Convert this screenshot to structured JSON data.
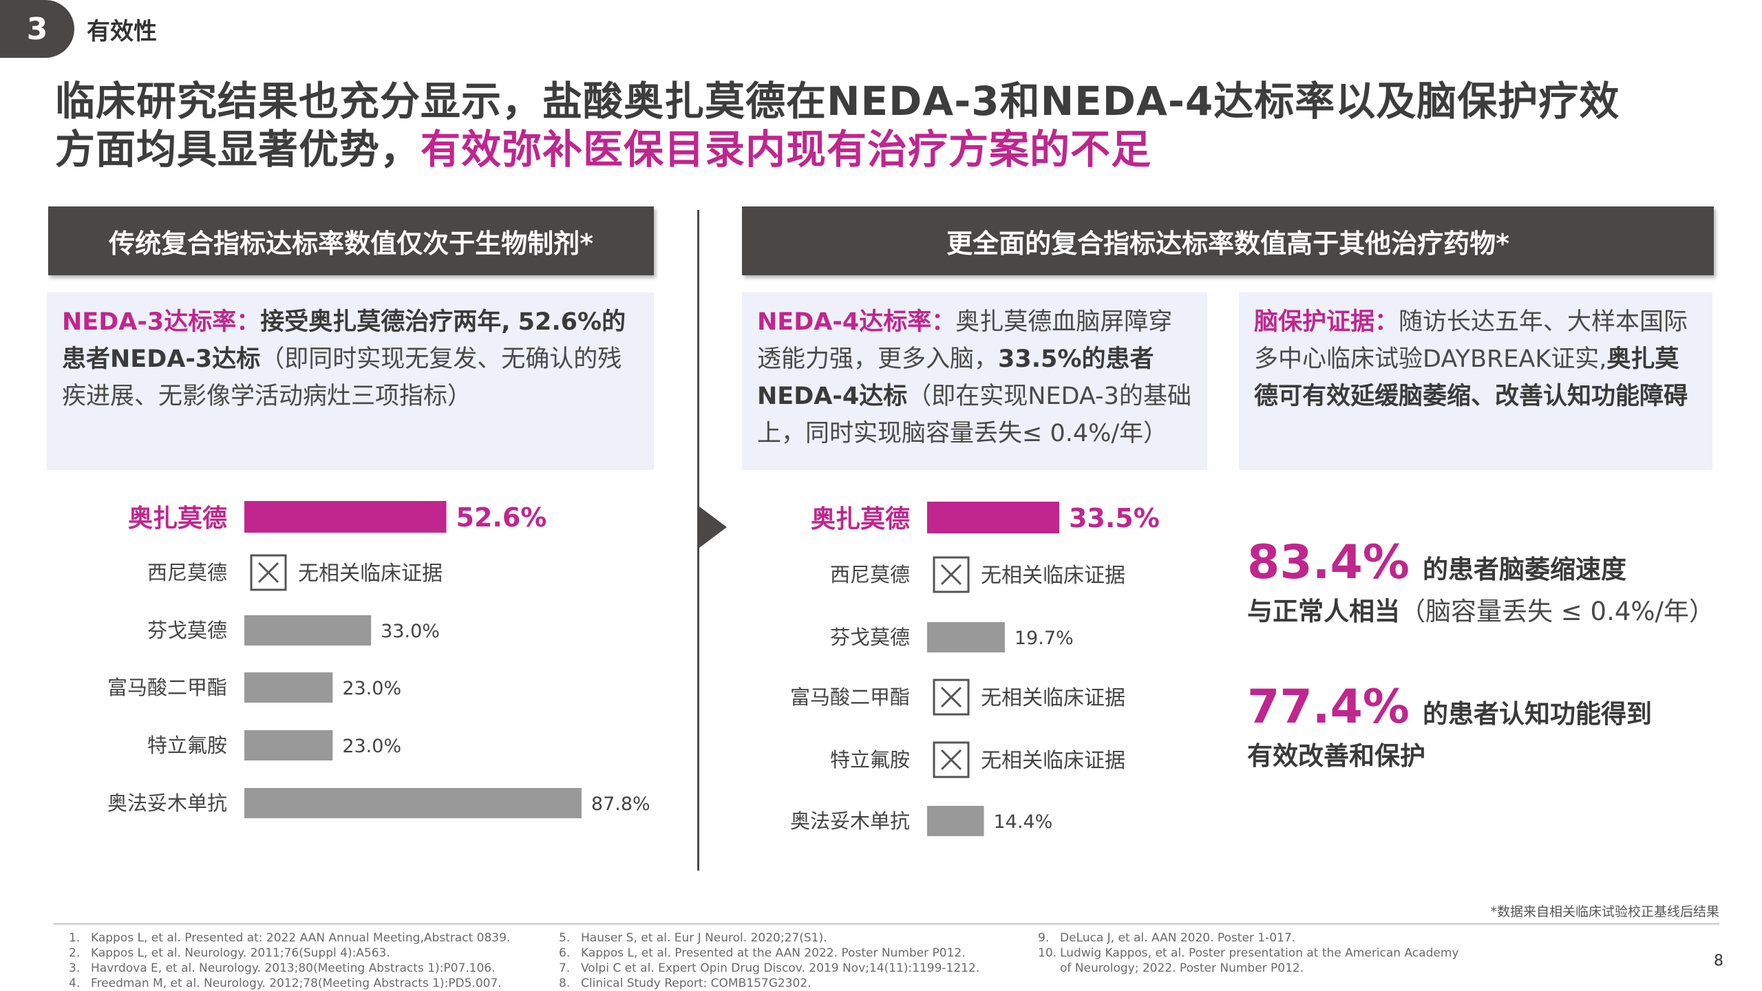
{
  "section": {
    "number": "3",
    "label": "有效性"
  },
  "headline": {
    "line1": "临床研究结果也充分显示，盐酸奥扎莫德在NEDA-3和NEDA-4达标率以及脑保护疗效",
    "line2_plain": "方面均具显著优势，",
    "line2_highlight": "有效弥补医保目录内现有治疗方案的不足"
  },
  "banners": {
    "left": "传统复合指标达标率数值仅次于生物制剂*",
    "right": "更全面的复合指标达标率数值高于其他治疗药物*"
  },
  "info_left": {
    "keyword": "NEDA-3达标率：",
    "t1": "接受奥扎莫德治疗两年,",
    "t2": "52.6%的患者NEDA-3达标",
    "t3": "（即同时实现无复发、无确认的残疾进展、无影像学活动病灶三项指标）"
  },
  "info_mid": {
    "keyword": "NEDA-4达标率：",
    "t1": "奥扎莫德血脑屏障穿透能力强，更多入脑，",
    "t2": "33.5%的患者NEDA-4达标",
    "t3": "（即在实现NEDA-3的基础上，同时实现脑容量丢失≤ 0.4%/年）"
  },
  "info_right": {
    "keyword": "脑保护证据：",
    "t1": "随访长达五年、大样本国际多中心临床试验DAYBREAK证实,",
    "t2": "奥扎莫德可有效延缓脑萎缩、改善认知功能障碍"
  },
  "chart_data": [
    {
      "type": "bar",
      "categories": [
        "奥扎莫德",
        "西尼莫德",
        "芬戈莫德",
        "富马酸二甲酯",
        "特立氟胺",
        "奥法妥木单抗"
      ],
      "values": [
        52.6,
        null,
        33.0,
        23.0,
        23.0,
        87.8
      ],
      "value_labels": [
        "52.6%",
        "",
        "33.0%",
        "23.0%",
        "23.0%",
        "87.8%"
      ],
      "no_data_label": "无相关临床证据",
      "highlight_color": "#c0268d",
      "bar_color": "#999999",
      "xlim": [
        0,
        100
      ]
    },
    {
      "type": "bar",
      "categories": [
        "奥扎莫德",
        "西尼莫德",
        "芬戈莫德",
        "富马酸二甲酯",
        "特立氟胺",
        "奥法妥木单抗"
      ],
      "values": [
        33.5,
        null,
        19.7,
        null,
        null,
        14.4
      ],
      "value_labels": [
        "33.5%",
        "",
        "19.7%",
        "",
        "",
        "14.4%"
      ],
      "no_data_label": "无相关临床证据",
      "highlight_color": "#c0268d",
      "bar_color": "#999999",
      "xlim": [
        0,
        100
      ]
    }
  ],
  "stats": [
    {
      "value": "83.4%",
      "text1": "的患者脑萎缩速度",
      "text2_bold": "与正常人相当",
      "text2_light": "（脑容量丢失 ≤ 0.4%/年）"
    },
    {
      "value": "77.4%",
      "text1": "的患者认知功能得到",
      "text2_bold": "有效改善和保护",
      "text2_light": ""
    }
  ],
  "footnote": "*数据来自相关临床试验校正基线后结果",
  "references": [
    {
      "n": "1.",
      "text": "Kappos L, et al. Presented at: 2022 AAN Annual Meeting,Abstract 0839."
    },
    {
      "n": "2.",
      "text": "Kappos L, et al. Neurology. 2011;76(Suppl 4):A563."
    },
    {
      "n": "3.",
      "text": "Havrdova E, et al. Neurology. 2013;80(Meeting Abstracts 1):P07.106."
    },
    {
      "n": "4.",
      "text": "Freedman M, et al. Neurology. 2012;78(Meeting Abstracts 1):PD5.007."
    },
    {
      "n": "5.",
      "text": "Hauser S, et al. Eur J Neurol. 2020;27(S1)."
    },
    {
      "n": "6.",
      "text": "Kappos L, et al. Presented at the AAN 2022. Poster Number P012."
    },
    {
      "n": "7.",
      "text": "Volpi C et al. Expert Opin Drug Discov. 2019 Nov;14(11):1199-1212."
    },
    {
      "n": "8.",
      "text": "Clinical Study Report: COMB157G2302."
    },
    {
      "n": "9.",
      "text": "DeLuca J, et al. AAN 2020. Poster 1-017."
    },
    {
      "n": "10.",
      "text": "Ludwig Kappos, et al. Poster presentation at the American Academy"
    },
    {
      "n": "",
      "text": "of Neurology; 2022. Poster Number P012."
    }
  ],
  "page_number": "8"
}
